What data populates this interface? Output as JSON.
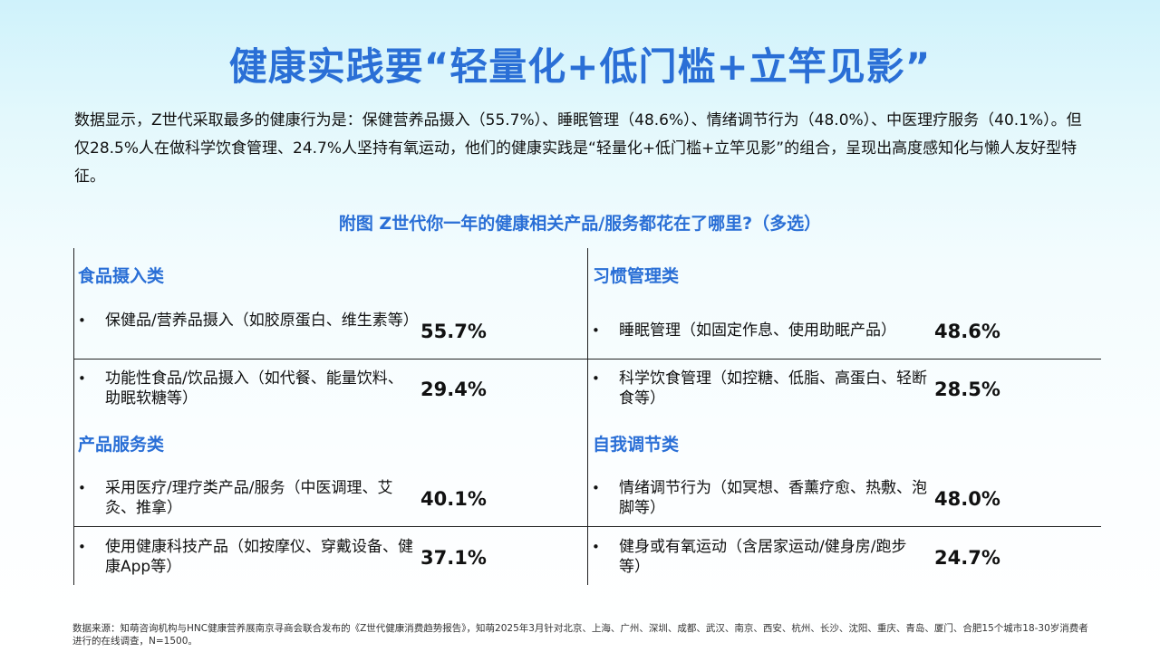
{
  "page": {
    "title": "健康实践要“轻量化+低门槛+立竿见影”",
    "intro": "数据显示，Z世代采取最多的健康行为是：保健营养品摄入（55.7%）、睡眠管理（48.6%）、情绪调节行为（48.0%）、中医理疗服务（40.1%）。但仅28.5%人在做科学饮食管理、24.7%人坚持有氧运动，他们的健康实践是“轻量化+低门槛+立竿见影”的组合，呈现出高度感知化与懒人友好型特征。",
    "subtitle": "附图  Z世代你一年的健康相关产品/服务都花在了哪里?（多选）",
    "source": "数据来源：知萌咨询机构与HNC健康营养展南京寻商会联合发布的《Z世代健康消费趋势报告》，知萌2025年3月针对北京、上海、广州、深圳、成都、武汉、南京、西安、杭州、长沙、沈阳、重庆、青岛、厦门、合肥15个城市18-30岁消费者进行的在线调查，N=1500。"
  },
  "categories": [
    {
      "name": "食品摄入类",
      "items": [
        {
          "bullet": "•",
          "label": "保健品/营养品摄入（如胶原蛋白、维生素等）",
          "value": "55.7%"
        },
        {
          "bullet": "•",
          "label": "功能性食品/饮品摄入（如代餐、能量饮料、助眠软糖等）",
          "value": "29.4%"
        }
      ]
    },
    {
      "name": "习惯管理类",
      "items": [
        {
          "bullet": "•",
          "label": "睡眠管理（如固定作息、使用助眠产品）",
          "value": "48.6%"
        },
        {
          "bullet": "•",
          "label": "科学饮食管理（如控糖、低脂、高蛋白、轻断食等）",
          "value": "28.5%"
        }
      ]
    },
    {
      "name": "产品服务类",
      "items": [
        {
          "bullet": "•",
          "label": "采用医疗/理疗类产品/服务（中医调理、艾灸、推拿）",
          "value": "40.1%"
        },
        {
          "bullet": "•",
          "label": "使用健康科技产品（如按摩仪、穿戴设备、健康App等）",
          "value": "37.1%"
        }
      ]
    },
    {
      "name": "自我调节类",
      "items": [
        {
          "bullet": "•",
          "label": "情绪调节行为（如冥想、香薰疗愈、热敷、泡脚等）",
          "value": "48.0%"
        },
        {
          "bullet": "•",
          "label": "健身或有氧运动（含居家运动/健身房/跑步等）",
          "value": "24.7%"
        }
      ]
    }
  ]
}
